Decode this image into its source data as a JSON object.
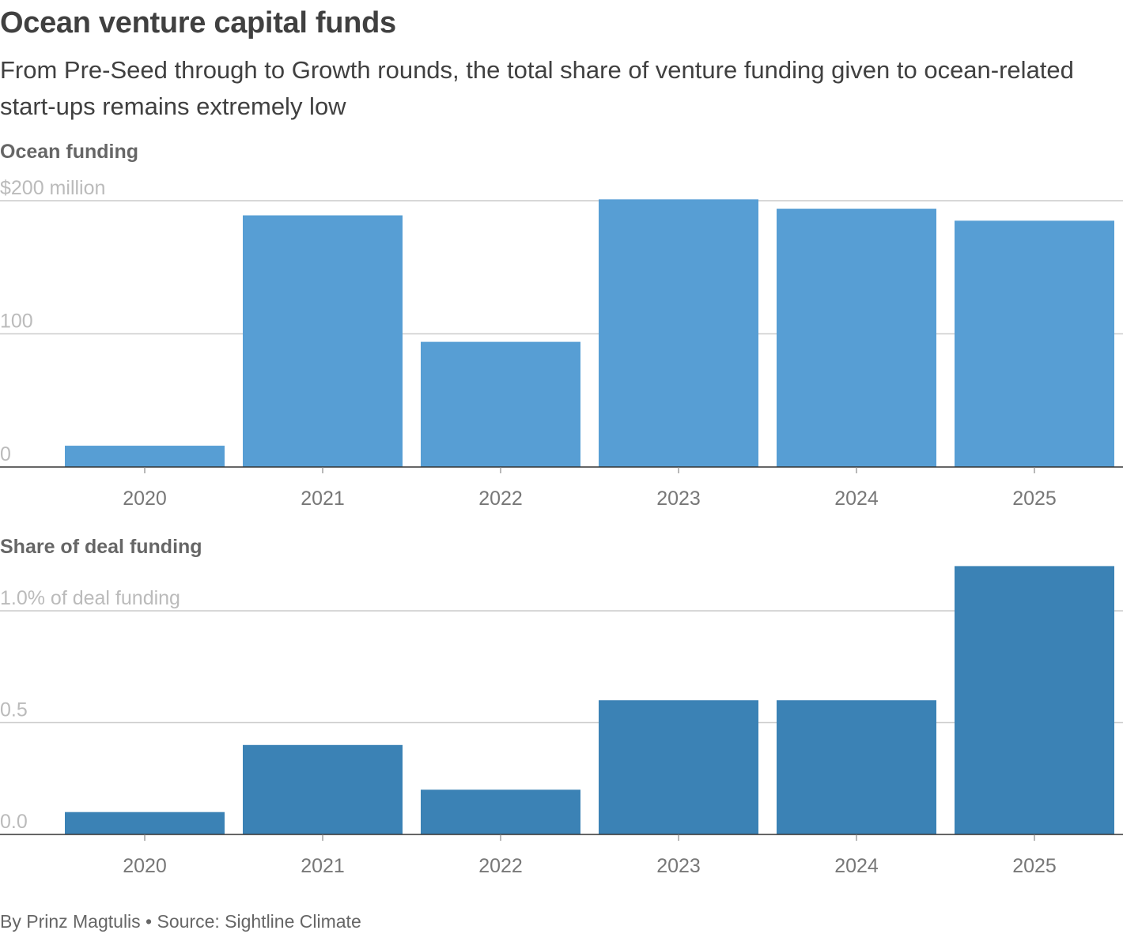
{
  "title": "Ocean venture capital funds",
  "subtitle": "From Pre-Seed through to Growth rounds, the total share of venture funding given to ocean-related start-ups remains extremely low",
  "footer": "By Prinz Magtulis • Source: Sightline Climate",
  "colors": {
    "panel1_bar": "#579ed4",
    "panel2_bar": "#3b82b5"
  },
  "chart_data": [
    {
      "type": "bar",
      "title": "Ocean funding",
      "categories": [
        "2020",
        "2021",
        "2022",
        "2023",
        "2024",
        "2025"
      ],
      "values": [
        16,
        189,
        94,
        201,
        194,
        185
      ],
      "ylim": [
        0,
        200
      ],
      "yticks": [
        0,
        100,
        200
      ],
      "ytick_labels": [
        "0",
        "100",
        "$200 million"
      ],
      "grid": true
    },
    {
      "type": "bar",
      "title": "Share of deal funding",
      "categories": [
        "2020",
        "2021",
        "2022",
        "2023",
        "2024",
        "2025"
      ],
      "values": [
        0.1,
        0.4,
        0.2,
        0.6,
        0.6,
        1.2
      ],
      "ylim": [
        0,
        1.0
      ],
      "yticks": [
        0,
        0.5,
        1.0
      ],
      "ytick_labels": [
        "0.0",
        "0.5",
        "1.0% of deal funding"
      ],
      "grid": true
    }
  ]
}
